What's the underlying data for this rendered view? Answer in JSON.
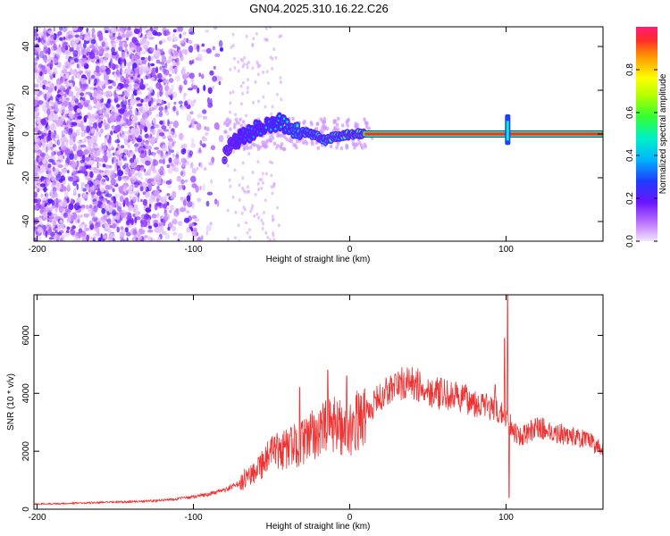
{
  "title": "GN04.2025.310.16.22.C26",
  "chart_data": [
    {
      "type": "heatmap",
      "title": "",
      "xlabel": "Height of straight line (km)",
      "ylabel": "Frequency (Hz)",
      "xlim": [
        -202,
        162
      ],
      "ylim": [
        -49,
        49
      ],
      "xticks": [
        -200,
        -100,
        0,
        100
      ],
      "yticks": [
        -40,
        -20,
        0,
        20,
        40
      ],
      "noise_region_x": [
        -202,
        -78
      ],
      "track": {
        "note": "coherent signal centered near 0 Hz",
        "points": [
          {
            "x": -80,
            "y": -10,
            "amp": 0.2
          },
          {
            "x": -75,
            "y": -5,
            "amp": 0.25
          },
          {
            "x": -70,
            "y": -2,
            "amp": 0.3
          },
          {
            "x": -65,
            "y": 0,
            "amp": 0.35
          },
          {
            "x": -60,
            "y": 2,
            "amp": 0.35
          },
          {
            "x": -55,
            "y": 4,
            "amp": 0.4
          },
          {
            "x": -50,
            "y": 4,
            "amp": 0.4
          },
          {
            "x": -45,
            "y": 6,
            "amp": 0.45
          },
          {
            "x": -40,
            "y": 3,
            "amp": 0.5
          },
          {
            "x": -35,
            "y": 1,
            "amp": 0.55
          },
          {
            "x": -30,
            "y": 1,
            "amp": 0.6
          },
          {
            "x": -25,
            "y": 0,
            "amp": 0.65
          },
          {
            "x": -20,
            "y": -1,
            "amp": 0.7
          },
          {
            "x": -15,
            "y": -3,
            "amp": 0.75
          },
          {
            "x": -10,
            "y": -1,
            "amp": 0.75
          },
          {
            "x": -5,
            "y": -1,
            "amp": 0.8
          },
          {
            "x": 0,
            "y": 0,
            "amp": 0.85
          },
          {
            "x": 5,
            "y": 0,
            "amp": 0.85
          },
          {
            "x": 10,
            "y": 0,
            "amp": 0.9
          },
          {
            "x": 100,
            "y": 0,
            "amp": 0.95
          },
          {
            "x": 160,
            "y": 0,
            "amp": 0.95
          }
        ]
      },
      "spike": {
        "x": 101,
        "y_range": [
          -5,
          9
        ]
      }
    },
    {
      "type": "line",
      "title": "",
      "xlabel": "Height of straight line (km)",
      "ylabel": "SNR (10 * v/v)",
      "xlim": [
        -202,
        162
      ],
      "ylim": [
        0,
        7400
      ],
      "xticks": [
        -200,
        -100,
        0,
        100
      ],
      "yticks": [
        0,
        2000,
        4000,
        6000
      ],
      "color": "#ee3333",
      "series": [
        {
          "name": "SNR",
          "x": [
            -200,
            -180,
            -160,
            -140,
            -120,
            -100,
            -90,
            -80,
            -70,
            -60,
            -50,
            -40,
            -30,
            -20,
            -10,
            0,
            10,
            20,
            30,
            40,
            50,
            60,
            70,
            80,
            90,
            100,
            105,
            110,
            120,
            130,
            140,
            150,
            160
          ],
          "values": [
            180,
            200,
            230,
            260,
            310,
            420,
            520,
            650,
            900,
            1400,
            1900,
            2100,
            2300,
            2700,
            2900,
            2800,
            3300,
            3900,
            4300,
            4350,
            4100,
            3950,
            3850,
            3700,
            3500,
            3200,
            2700,
            2500,
            2850,
            2650,
            2550,
            2400,
            2150
          ]
        }
      ],
      "spikes": [
        {
          "x": -32,
          "value": 4200
        },
        {
          "x": -14,
          "value": 4800
        },
        {
          "x": -2,
          "value": 4600
        },
        {
          "x": 93,
          "value": 4300
        },
        {
          "x": 99,
          "value": 5900
        },
        {
          "x": 101,
          "value": 7400
        }
      ]
    }
  ],
  "colorbar": {
    "label": "Normalized spectral amplitude",
    "range": [
      0,
      1
    ],
    "ticks": [
      "0.0",
      "0.2",
      "0.4",
      "0.6",
      "0.8"
    ]
  }
}
